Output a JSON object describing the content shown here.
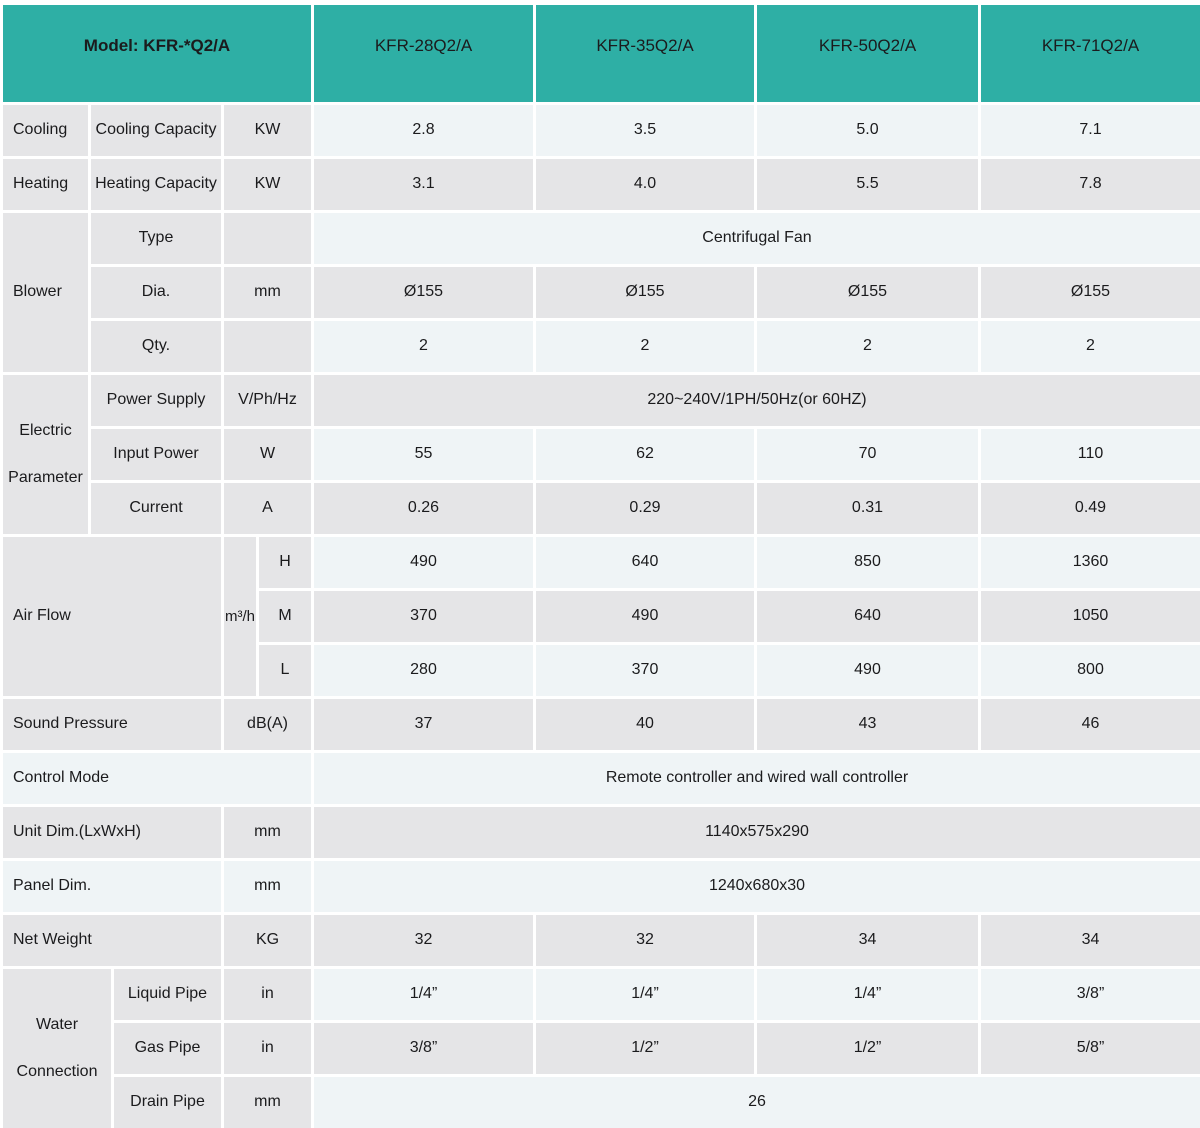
{
  "header": {
    "model_label": "Model: KFR-*Q2/A",
    "columns": [
      "KFR-28Q2/A",
      "KFR-35Q2/A",
      "KFR-50Q2/A",
      "KFR-71Q2/A"
    ]
  },
  "cooling": {
    "label": "Cooling",
    "sub": "Cooling Capacity",
    "unit": "KW",
    "values": [
      "2.8",
      "3.5",
      "5.0",
      "7.1"
    ]
  },
  "heating": {
    "label": "Heating",
    "sub": "Heating Capacity",
    "unit": "KW",
    "values": [
      "3.1",
      "4.0",
      "5.5",
      "7.8"
    ]
  },
  "blower": {
    "label": "Blower",
    "type": {
      "sub": "Type",
      "unit": "",
      "value": "Centrifugal Fan"
    },
    "dia": {
      "sub": "Dia.",
      "unit": "mm",
      "values": [
        "Ø155",
        "Ø155",
        "Ø155",
        "Ø155"
      ]
    },
    "qty": {
      "sub": "Qty.",
      "unit": "",
      "values": [
        "2",
        "2",
        "2",
        "2"
      ]
    }
  },
  "electric": {
    "label_line1": "Electric",
    "label_line2": "Parameter",
    "power_supply": {
      "sub": "Power Supply",
      "unit": "V/Ph/Hz",
      "value": "220~240V/1PH/50Hz(or 60HZ)"
    },
    "input_power": {
      "sub": "Input Power",
      "unit": "W",
      "values": [
        "55",
        "62",
        "70",
        "110"
      ]
    },
    "current": {
      "sub": "Current",
      "unit": "A",
      "values": [
        "0.26",
        "0.29",
        "0.31",
        "0.49"
      ]
    }
  },
  "air_flow": {
    "label": "Air Flow",
    "unit": "m³/h",
    "h": {
      "sub": "H",
      "values": [
        "490",
        "640",
        "850",
        "1360"
      ]
    },
    "m": {
      "sub": "M",
      "values": [
        "370",
        "490",
        "640",
        "1050"
      ]
    },
    "l": {
      "sub": "L",
      "values": [
        "280",
        "370",
        "490",
        "800"
      ]
    }
  },
  "sound_pressure": {
    "label": "Sound Pressure",
    "unit": "dB(A)",
    "values": [
      "37",
      "40",
      "43",
      "46"
    ]
  },
  "control_mode": {
    "label": "Control Mode",
    "value": "Remote controller and wired wall controller"
  },
  "unit_dim": {
    "label": "Unit Dim.(LxWxH)",
    "unit": "mm",
    "value": "1140x575x290"
  },
  "panel_dim": {
    "label": "Panel Dim.",
    "unit": "mm",
    "value": "1240x680x30"
  },
  "net_weight": {
    "label": "Net Weight",
    "unit": "KG",
    "values": [
      "32",
      "32",
      "34",
      "34"
    ]
  },
  "water": {
    "label_line1": "Water",
    "label_line2": "Connection",
    "liquid": {
      "sub": "Liquid Pipe",
      "unit": "in",
      "values": [
        "1/4”",
        "1/4”",
        "1/4”",
        "3/8”"
      ]
    },
    "gas": {
      "sub": "Gas Pipe",
      "unit": "in",
      "values": [
        "3/8”",
        "1/2”",
        "1/2”",
        "5/8”"
      ]
    },
    "drain": {
      "sub": "Drain Pipe",
      "unit": "mm",
      "value": "26"
    }
  },
  "colors": {
    "teal": "#2eafa5",
    "cell_gray": "#e5e5e7",
    "cell_light": "#eff4f6",
    "text": "#1b1b1d"
  }
}
